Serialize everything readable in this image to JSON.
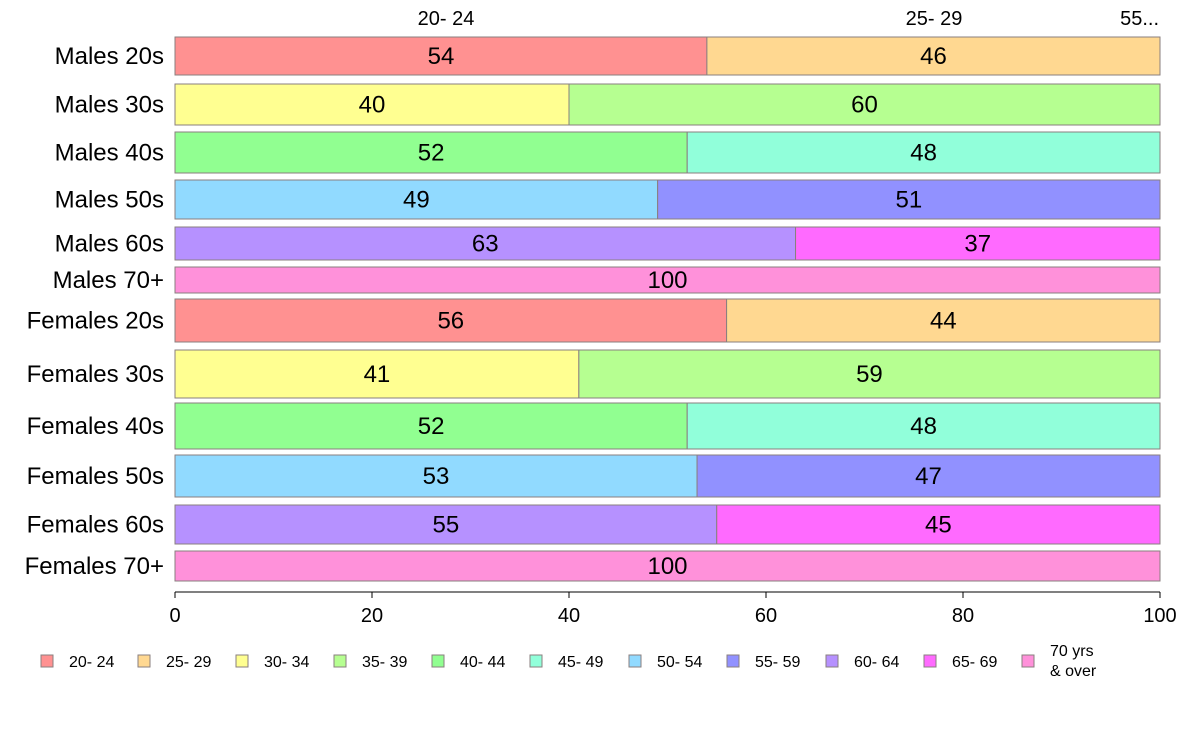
{
  "chart_data": {
    "type": "bar",
    "orientation": "horizontal",
    "stacked": true,
    "normalized": true,
    "xlim": [
      0,
      100
    ],
    "x_ticks": [
      0,
      20,
      40,
      60,
      80,
      100
    ],
    "top_labels": [
      "20- 24",
      "25- 29",
      "55..."
    ],
    "legend": {
      "position": "bottom",
      "entries": [
        {
          "name": "20- 24",
          "color": "#ff9191"
        },
        {
          "name": "25- 29",
          "color": "#ffd891"
        },
        {
          "name": "30- 34",
          "color": "#ffff91"
        },
        {
          "name": "35- 39",
          "color": "#b6ff91"
        },
        {
          "name": "40- 44",
          "color": "#91ff91"
        },
        {
          "name": "45- 49",
          "color": "#91ffda"
        },
        {
          "name": "50- 54",
          "color": "#91daff"
        },
        {
          "name": "55- 59",
          "color": "#9191ff"
        },
        {
          "name": "60- 64",
          "color": "#b691ff"
        },
        {
          "name": "65- 69",
          "color": "#ff6aff"
        },
        {
          "name": "70 yrs\n& over",
          "color": "#ff91da"
        }
      ]
    },
    "categories": [
      {
        "label": "Males 20s",
        "segments": [
          {
            "group": 0,
            "value": 54
          },
          {
            "group": 1,
            "value": 46
          }
        ]
      },
      {
        "label": "Males 30s",
        "segments": [
          {
            "group": 2,
            "value": 40
          },
          {
            "group": 3,
            "value": 60
          }
        ]
      },
      {
        "label": "Males 40s",
        "segments": [
          {
            "group": 4,
            "value": 52
          },
          {
            "group": 5,
            "value": 48
          }
        ]
      },
      {
        "label": "Males 50s",
        "segments": [
          {
            "group": 6,
            "value": 49
          },
          {
            "group": 7,
            "value": 51
          }
        ]
      },
      {
        "label": "Males 60s",
        "segments": [
          {
            "group": 8,
            "value": 63
          },
          {
            "group": 9,
            "value": 37
          }
        ]
      },
      {
        "label": "Males 70+",
        "segments": [
          {
            "group": 10,
            "value": 100
          }
        ]
      },
      {
        "label": "Females 20s",
        "segments": [
          {
            "group": 0,
            "value": 56
          },
          {
            "group": 1,
            "value": 44
          }
        ]
      },
      {
        "label": "Females 30s",
        "segments": [
          {
            "group": 2,
            "value": 41
          },
          {
            "group": 3,
            "value": 59
          }
        ]
      },
      {
        "label": "Females 40s",
        "segments": [
          {
            "group": 4,
            "value": 52
          },
          {
            "group": 5,
            "value": 48
          }
        ]
      },
      {
        "label": "Females 50s",
        "segments": [
          {
            "group": 6,
            "value": 53
          },
          {
            "group": 7,
            "value": 47
          }
        ]
      },
      {
        "label": "Females 60s",
        "segments": [
          {
            "group": 8,
            "value": 55
          },
          {
            "group": 9,
            "value": 45
          }
        ]
      },
      {
        "label": "Females 70+",
        "segments": [
          {
            "group": 10,
            "value": 100
          }
        ]
      }
    ]
  }
}
